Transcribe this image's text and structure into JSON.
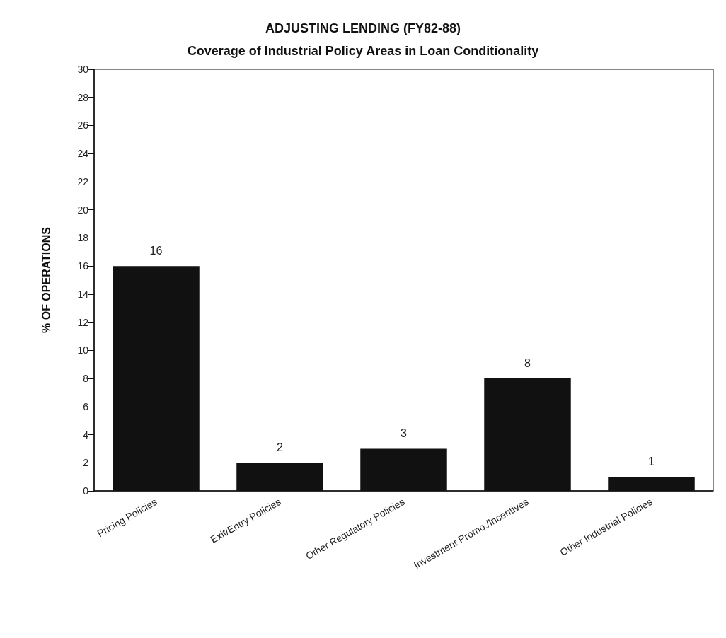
{
  "chart_data": {
    "type": "bar",
    "title": "ADJUSTING LENDING (FY82-88)",
    "subtitle": "Coverage of Industrial Policy Areas in Loan Conditionality",
    "ylabel": "% OF OPERATIONS",
    "categories": [
      "Pricing Policies",
      "Exit/Entry Policies",
      "Other Regulatory Policies",
      "Investment Promo./Incentives",
      "Other Industrial Policies"
    ],
    "values": [
      16,
      2,
      3,
      8,
      1
    ],
    "color": "#111111",
    "data_labels": true,
    "ylim": [
      0,
      30
    ],
    "yticks": [
      0,
      2,
      4,
      6,
      8,
      10,
      12,
      14,
      16,
      18,
      20,
      22,
      24,
      26,
      28,
      30
    ],
    "grid": false
  }
}
